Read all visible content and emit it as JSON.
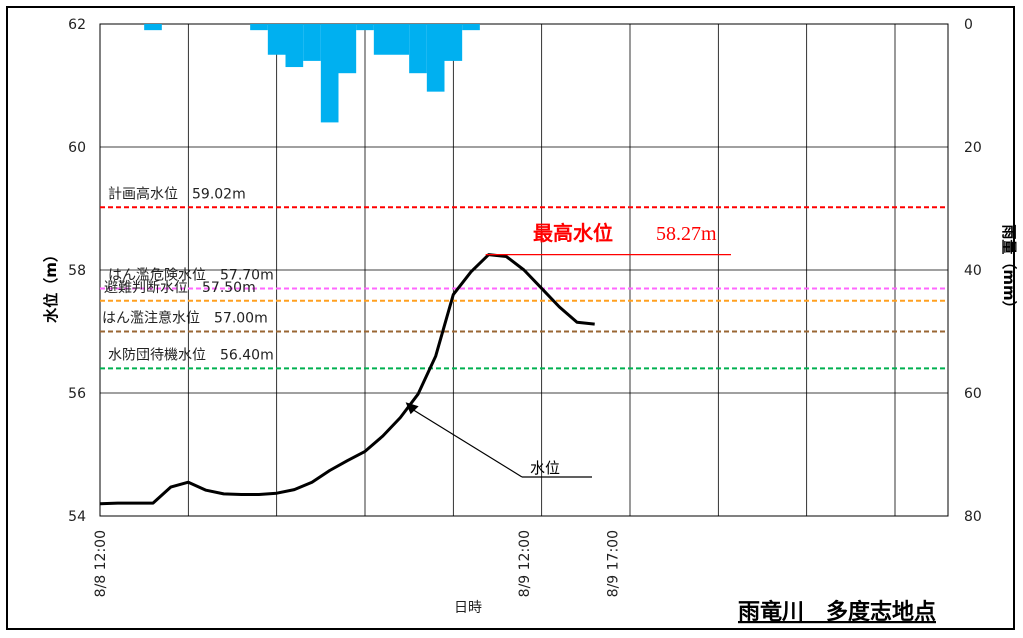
{
  "chart_data": {
    "type": "line",
    "title": "雨竜川　多度志地点",
    "xlabel": "日時",
    "ylabel_left": "水位（m）",
    "ylabel_right": "雨量（mm）",
    "x_ticks": [
      {
        "label": "8/8 12:00",
        "hour": 0
      },
      {
        "label": "8/9 12:00",
        "hour": 24
      },
      {
        "label": "8/9 17:00",
        "hour": 29
      }
    ],
    "x_range": [
      0,
      48
    ],
    "y_left": {
      "min": 54,
      "max": 62,
      "ticks": [
        54,
        56,
        58,
        60,
        62
      ]
    },
    "y_right": {
      "min": 0,
      "max": 80,
      "inverted": true,
      "ticks": [
        0,
        20,
        40,
        60,
        80
      ]
    },
    "grid": true,
    "water_level": {
      "name": "水位",
      "color": "#000000",
      "x": [
        0,
        1,
        2,
        3,
        4,
        5,
        6,
        7,
        8,
        9,
        10,
        11,
        12,
        13,
        14,
        15,
        16,
        17,
        18,
        19,
        20,
        21,
        22,
        23,
        24,
        25,
        26,
        27,
        28
      ],
      "y": [
        54.2,
        54.21,
        54.21,
        54.21,
        54.47,
        54.55,
        54.42,
        54.36,
        54.35,
        54.35,
        54.37,
        54.43,
        54.55,
        54.74,
        54.9,
        55.05,
        55.3,
        55.6,
        55.98,
        56.6,
        57.6,
        57.97,
        58.25,
        58.22,
        58.0,
        57.7,
        57.4,
        57.15,
        57.12
      ]
    },
    "rainfall": {
      "color": "#00B0F0",
      "start": [
        2.5,
        8.5,
        9.5,
        10.5,
        11.5,
        12.5,
        13.5,
        14.5,
        15.5,
        16.5,
        17.5,
        18.5,
        19.5,
        20.5
      ],
      "end": [
        3.5,
        9.5,
        10.5,
        11.5,
        12.5,
        13.5,
        14.5,
        15.5,
        16.5,
        17.5,
        18.5,
        19.5,
        20.5,
        21.5
      ],
      "values": [
        1,
        1,
        5,
        7,
        6,
        16,
        8,
        1,
        5,
        5,
        8,
        11,
        6,
        1
      ]
    },
    "reference_levels": [
      {
        "label": "計画高水位",
        "value_text": "59.02m",
        "value": 59.02,
        "color": "#FF0000"
      },
      {
        "label": "はん濫危険水位",
        "value_text": "57.70m",
        "value": 57.7,
        "color": "#FF66FF"
      },
      {
        "label": "避難判断水位",
        "value_text": "57.50m",
        "value": 57.5,
        "color": "#FFA020"
      },
      {
        "label": "はん濫注意水位",
        "value_text": "57.00m",
        "value": 57.0,
        "color": "#996633"
      },
      {
        "label": "水防団待機水位",
        "value_text": "56.40m",
        "value": 56.4,
        "color": "#00B050"
      }
    ],
    "annotations": [
      {
        "label": "最高水位",
        "value_text": "58.27m",
        "color": "#FF0000"
      },
      {
        "label": "水位"
      }
    ]
  }
}
